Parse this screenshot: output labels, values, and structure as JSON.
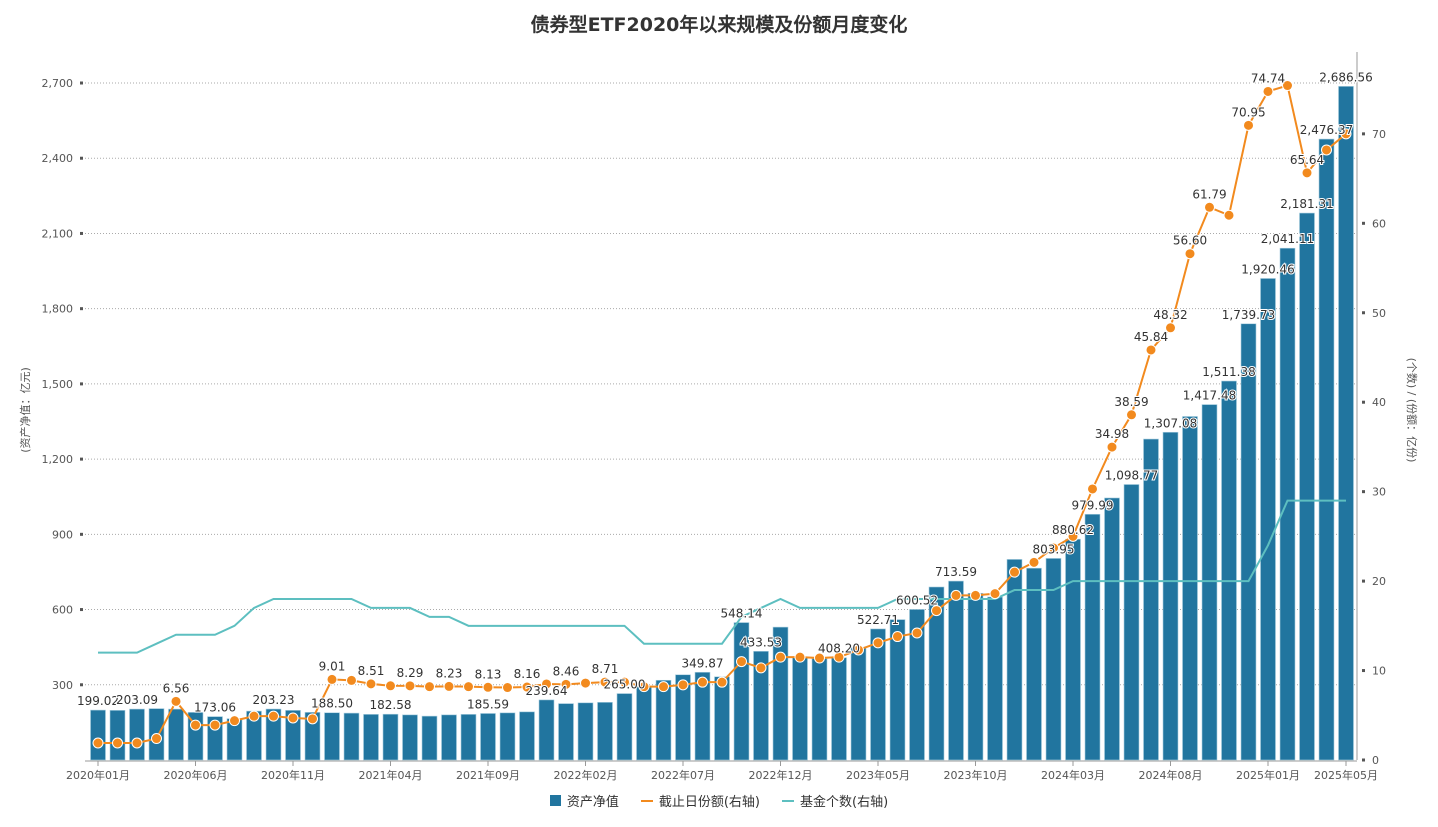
{
  "chart_data": {
    "type": "bar+line",
    "title": "债券型ETF2020年以来规模及份额月度变化",
    "ylabel_left": "(资产净值：亿元)",
    "ylabel_right": "(个数) / (份额：亿份)",
    "ylim_left": [
      0,
      2700
    ],
    "yticks_left": [
      "300",
      "600",
      "900",
      "1,200",
      "1,500",
      "1,800",
      "2,100",
      "2,400",
      "2,700"
    ],
    "ylim_right": [
      0,
      76
    ],
    "yticks_right": [
      "0",
      "10",
      "20",
      "30",
      "40",
      "50",
      "60",
      "70"
    ],
    "grid": true,
    "legend_position": "bottom",
    "x_tick_labels": [
      {
        "index": 0,
        "label": "2020年01月"
      },
      {
        "index": 5,
        "label": "2020年06月"
      },
      {
        "index": 10,
        "label": "2020年11月"
      },
      {
        "index": 15,
        "label": "2021年04月"
      },
      {
        "index": 20,
        "label": "2021年09月"
      },
      {
        "index": 25,
        "label": "2022年02月"
      },
      {
        "index": 30,
        "label": "2022年07月"
      },
      {
        "index": 35,
        "label": "2022年12月"
      },
      {
        "index": 40,
        "label": "2023年05月"
      },
      {
        "index": 45,
        "label": "2023年10月"
      },
      {
        "index": 50,
        "label": "2024年03月"
      },
      {
        "index": 55,
        "label": "2024年08月"
      },
      {
        "index": 60,
        "label": "2025年01月"
      },
      {
        "index": 64,
        "label": "2025年05月"
      }
    ],
    "series": [
      {
        "name": "资产净值",
        "type": "bar",
        "axis": "left",
        "color": "#21759f",
        "values": [
          199.02,
          198,
          203.09,
          205,
          203,
          190,
          173.06,
          165,
          195,
          203.23,
          198,
          190,
          188.5,
          187,
          182,
          182.58,
          180,
          175,
          180,
          182,
          185.59,
          188,
          192,
          239.64,
          225,
          228,
          230,
          265,
          294.08,
          318,
          340,
          349.87,
          332,
          548.14,
          433.53,
          530,
          410,
          405,
          408.2,
          450,
          522.71,
          560,
          600.52,
          690,
          713.59,
          665,
          650,
          800,
          765,
          803.95,
          880.62,
          979.99,
          1045,
          1098.77,
          1280,
          1307.08,
          1370,
          1417.48,
          1511.38,
          1739.73,
          1920.46,
          2041.11,
          2181.31,
          2476.37,
          2686.56
        ],
        "labeled": [
          0,
          2,
          6,
          9,
          12,
          15,
          20,
          23,
          27,
          31,
          33,
          34,
          38,
          40,
          42,
          44,
          49,
          50,
          51,
          53,
          55,
          57,
          58,
          59,
          60,
          61,
          62,
          63,
          64
        ]
      },
      {
        "name": "截止日份额(右轴)",
        "type": "line",
        "axis": "right",
        "color": "#f28a1e",
        "values": [
          1.9,
          1.9,
          1.9,
          2.4,
          6.56,
          3.9,
          3.9,
          4.4,
          4.9,
          4.9,
          4.7,
          4.6,
          9.01,
          8.9,
          8.51,
          8.3,
          8.29,
          8.2,
          8.23,
          8.2,
          8.13,
          8.1,
          8.16,
          8.5,
          8.46,
          8.6,
          8.71,
          8.7,
          8.2,
          8.2,
          8.4,
          8.7,
          8.7,
          11.0,
          10.3,
          11.5,
          11.5,
          11.4,
          11.5,
          12.3,
          13.1,
          13.8,
          14.2,
          16.7,
          18.4,
          18.4,
          18.6,
          21.0,
          22.1,
          23.7,
          25.0,
          30.3,
          34.98,
          38.59,
          45.84,
          48.32,
          56.6,
          61.79,
          60.9,
          70.95,
          74.74,
          75.4,
          65.64,
          68.2,
          70.0
        ],
        "labeled": [
          4,
          12,
          14,
          16,
          18,
          20,
          22,
          24,
          26,
          52,
          53,
          54,
          55,
          56,
          57,
          59,
          60,
          62
        ]
      },
      {
        "name": "基金个数(右轴)",
        "type": "line",
        "axis": "right",
        "color": "#5dbfc0",
        "values": [
          12,
          12,
          12,
          13,
          14,
          14,
          14,
          15,
          17,
          18,
          18,
          18,
          18,
          18,
          17,
          17,
          17,
          16,
          16,
          15,
          15,
          15,
          15,
          15,
          15,
          15,
          15,
          15,
          13,
          13,
          13,
          13,
          13,
          16,
          17,
          18,
          17,
          17,
          17,
          17,
          17,
          18,
          18,
          18,
          18,
          18,
          18,
          19,
          19,
          19,
          20,
          20,
          20,
          20,
          20,
          20,
          20,
          20,
          20,
          20,
          24,
          29,
          29,
          29,
          29
        ]
      }
    ]
  }
}
